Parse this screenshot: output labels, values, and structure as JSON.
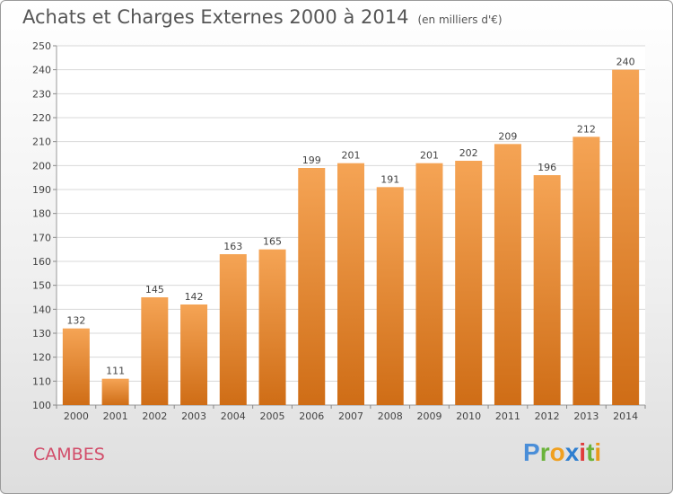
{
  "title": "Achats et Charges Externes 2000 à 2014",
  "unit": "(en milliers d'€)",
  "city": "CAMBES",
  "brand": {
    "letters": [
      "P",
      "r",
      "o",
      "x",
      "i",
      "t",
      "i"
    ],
    "colors": [
      "#4a8ed8",
      "#6bb33a",
      "#f0a020",
      "#2f7fd0",
      "#e03c3c",
      "#6bb33a",
      "#e89a1c"
    ]
  },
  "colors": {
    "bar_top": "#f5a455",
    "bar_bottom": "#cf6d16",
    "title": "#555555",
    "city": "#d24d6a"
  },
  "chart_data": {
    "type": "bar",
    "categories": [
      "2000",
      "2001",
      "2002",
      "2003",
      "2004",
      "2005",
      "2006",
      "2007",
      "2008",
      "2009",
      "2010",
      "2011",
      "2012",
      "2013",
      "2014"
    ],
    "values": [
      132,
      111,
      145,
      142,
      163,
      165,
      199,
      201,
      191,
      201,
      202,
      209,
      196,
      212,
      240
    ],
    "ylim": [
      100,
      250
    ],
    "yticks": [
      100,
      110,
      120,
      130,
      140,
      150,
      160,
      170,
      180,
      190,
      200,
      210,
      220,
      230,
      240,
      250
    ],
    "grid": true
  }
}
